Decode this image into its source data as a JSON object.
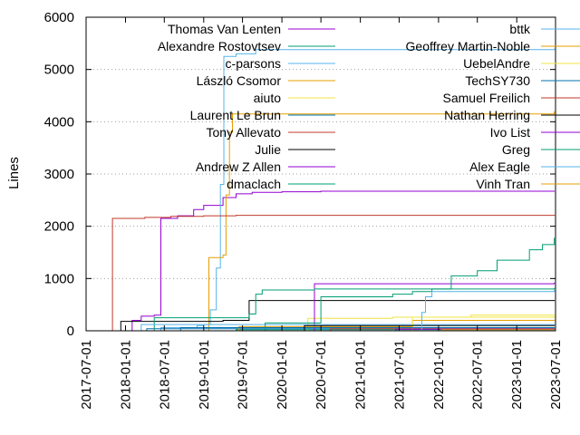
{
  "chart_data": {
    "type": "line",
    "title": "",
    "xlabel": "",
    "ylabel": "Lines",
    "x_axis": "date",
    "xlim": [
      "2017-07-01",
      "2023-07-01"
    ],
    "ylim": [
      0,
      6000
    ],
    "yticks": [
      0,
      1000,
      2000,
      3000,
      4000,
      5000,
      6000
    ],
    "xticks": [
      "2017-07-01",
      "2018-01-01",
      "2018-07-01",
      "2019-01-01",
      "2019-07-01",
      "2020-01-01",
      "2020-07-01",
      "2021-01-01",
      "2021-07-01",
      "2022-01-01",
      "2022-07-01",
      "2023-01-01",
      "2023-07-01"
    ],
    "grid": "horizontal dotted at y ticks",
    "legend_placement": "top, two columns",
    "step": true,
    "series": [
      {
        "name": "Thomas Van Lenten",
        "color": "#9400d3",
        "points": [
          [
            "2017-07-01",
            0
          ],
          [
            "2018-01-01",
            0
          ],
          [
            "2018-02-01",
            200
          ],
          [
            "2018-03-15",
            280
          ],
          [
            "2018-05-15",
            300
          ],
          [
            "2018-06-15",
            2150
          ],
          [
            "2018-09-01",
            2200
          ],
          [
            "2018-11-15",
            2320
          ],
          [
            "2019-01-01",
            2400
          ],
          [
            "2019-04-01",
            2550
          ],
          [
            "2019-06-01",
            2620
          ],
          [
            "2019-08-15",
            2650
          ],
          [
            "2020-01-01",
            2660
          ],
          [
            "2020-07-01",
            2670
          ],
          [
            "2023-06-25",
            2680
          ]
        ]
      },
      {
        "name": "Alexandre Rostovtsev",
        "color": "#009e73",
        "points": [
          [
            "2017-07-01",
            0
          ],
          [
            "2019-05-15",
            0
          ],
          [
            "2019-06-01",
            20
          ],
          [
            "2023-06-25",
            30
          ]
        ]
      },
      {
        "name": "c-parsons",
        "color": "#56b4e9",
        "points": [
          [
            "2017-07-01",
            0
          ],
          [
            "2018-06-01",
            0
          ],
          [
            "2018-06-15",
            60
          ],
          [
            "2018-12-01",
            100
          ],
          [
            "2019-01-01",
            120
          ],
          [
            "2019-02-01",
            400
          ],
          [
            "2019-03-01",
            1200
          ],
          [
            "2019-03-20",
            2800
          ],
          [
            "2019-04-05",
            5250
          ],
          [
            "2019-06-01",
            5300
          ],
          [
            "2019-09-01",
            5380
          ],
          [
            "2023-06-25",
            5400
          ]
        ]
      },
      {
        "name": "László Csomor",
        "color": "#e69f00",
        "points": [
          [
            "2017-07-01",
            0
          ],
          [
            "2019-01-15",
            0
          ],
          [
            "2019-01-25",
            1400
          ],
          [
            "2019-04-01",
            1450
          ],
          [
            "2019-04-15",
            2600
          ],
          [
            "2019-05-01",
            3800
          ],
          [
            "2019-05-15",
            4150
          ],
          [
            "2023-06-25",
            4200
          ]
        ]
      },
      {
        "name": "aiuto",
        "color": "#f0e442",
        "points": [
          [
            "2017-07-01",
            0
          ],
          [
            "2020-04-01",
            0
          ],
          [
            "2020-05-01",
            240
          ],
          [
            "2021-06-01",
            260
          ],
          [
            "2022-06-01",
            300
          ],
          [
            "2023-06-25",
            310
          ]
        ]
      },
      {
        "name": "Laurent Le Brun",
        "color": "#0072b2",
        "points": [
          [
            "2017-07-01",
            0
          ],
          [
            "2018-04-01",
            0
          ],
          [
            "2018-04-10",
            40
          ],
          [
            "2023-06-25",
            50
          ]
        ]
      },
      {
        "name": "Tony Allevato",
        "color": "#c0392b",
        "points": [
          [
            "2017-07-01",
            0
          ],
          [
            "2017-11-01",
            2150
          ],
          [
            "2018-04-01",
            2170
          ],
          [
            "2018-08-01",
            2190
          ],
          [
            "2019-01-01",
            2200
          ],
          [
            "2019-06-01",
            2210
          ],
          [
            "2023-06-25",
            2220
          ]
        ]
      },
      {
        "name": "Julie",
        "color": "#000000",
        "points": [
          [
            "2017-07-01",
            0
          ],
          [
            "2017-12-01",
            0
          ],
          [
            "2017-12-10",
            180
          ],
          [
            "2019-04-01",
            200
          ],
          [
            "2019-08-01",
            580
          ],
          [
            "2023-06-25",
            590
          ]
        ]
      },
      {
        "name": "Andrew Z Allen",
        "color": "#9400d3",
        "points": [
          [
            "2017-07-01",
            0
          ],
          [
            "2020-05-01",
            0
          ],
          [
            "2020-06-01",
            900
          ],
          [
            "2023-06-25",
            920
          ]
        ]
      },
      {
        "name": "dmaclach",
        "color": "#009e73",
        "points": [
          [
            "2017-07-01",
            0
          ],
          [
            "2018-05-01",
            0
          ],
          [
            "2018-05-15",
            250
          ],
          [
            "2019-08-01",
            320
          ],
          [
            "2019-09-01",
            700
          ],
          [
            "2019-10-01",
            780
          ],
          [
            "2020-06-01",
            800
          ],
          [
            "2023-06-25",
            820
          ]
        ]
      },
      {
        "name": "bttk",
        "color": "#56b4e9",
        "points": [
          [
            "2017-07-01",
            0
          ],
          [
            "2018-03-01",
            0
          ],
          [
            "2018-03-15",
            120
          ],
          [
            "2023-06-25",
            130
          ]
        ]
      },
      {
        "name": "Geoffrey Martin-Noble",
        "color": "#e69f00",
        "points": [
          [
            "2017-07-01",
            0
          ],
          [
            "2019-06-01",
            0
          ],
          [
            "2019-06-15",
            80
          ],
          [
            "2021-09-01",
            200
          ],
          [
            "2023-06-25",
            210
          ]
        ]
      },
      {
        "name": "UebelAndre",
        "color": "#f0e442",
        "points": [
          [
            "2017-07-01",
            0
          ],
          [
            "2021-08-01",
            0
          ],
          [
            "2021-09-01",
            260
          ],
          [
            "2023-06-25",
            280
          ]
        ]
      },
      {
        "name": "TechSY730",
        "color": "#0072b2",
        "points": [
          [
            "2017-07-01",
            0
          ],
          [
            "2018-09-01",
            0
          ],
          [
            "2018-09-15",
            60
          ],
          [
            "2023-06-25",
            70
          ]
        ]
      },
      {
        "name": "Samuel Freilich",
        "color": "#c0392b",
        "points": [
          [
            "2017-07-01",
            0
          ],
          [
            "2020-08-01",
            0
          ],
          [
            "2020-08-15",
            40
          ],
          [
            "2023-06-25",
            45
          ]
        ]
      },
      {
        "name": "Nathan Herring",
        "color": "#000000",
        "points": [
          [
            "2017-07-01",
            0
          ],
          [
            "2020-04-01",
            0
          ],
          [
            "2020-04-15",
            100
          ],
          [
            "2023-06-25",
            110
          ]
        ]
      },
      {
        "name": "Ivo List",
        "color": "#9400d3",
        "points": [
          [
            "2017-07-01",
            0
          ],
          [
            "2021-06-01",
            0
          ],
          [
            "2021-06-15",
            30
          ],
          [
            "2023-06-25",
            40
          ]
        ]
      },
      {
        "name": "Greg",
        "color": "#009e73",
        "points": [
          [
            "2017-07-01",
            0
          ],
          [
            "2019-10-01",
            0
          ],
          [
            "2019-10-15",
            150
          ],
          [
            "2020-07-01",
            650
          ],
          [
            "2021-06-01",
            700
          ],
          [
            "2021-09-01",
            750
          ],
          [
            "2021-12-01",
            800
          ],
          [
            "2022-03-01",
            1050
          ],
          [
            "2022-07-01",
            1150
          ],
          [
            "2022-10-01",
            1350
          ],
          [
            "2023-03-01",
            1550
          ],
          [
            "2023-05-01",
            1650
          ],
          [
            "2023-06-25",
            1780
          ]
        ]
      },
      {
        "name": "Alex Eagle",
        "color": "#56b4e9",
        "points": [
          [
            "2017-07-01",
            0
          ],
          [
            "2021-10-01",
            0
          ],
          [
            "2021-10-15",
            350
          ],
          [
            "2021-11-01",
            650
          ],
          [
            "2021-12-01",
            750
          ],
          [
            "2023-06-25",
            780
          ]
        ]
      },
      {
        "name": "Vinh Tran",
        "color": "#e69f00",
        "points": [
          [
            "2017-07-01",
            0
          ],
          [
            "2022-01-01",
            0
          ],
          [
            "2022-01-15",
            20
          ],
          [
            "2023-06-25",
            25
          ]
        ]
      }
    ]
  }
}
